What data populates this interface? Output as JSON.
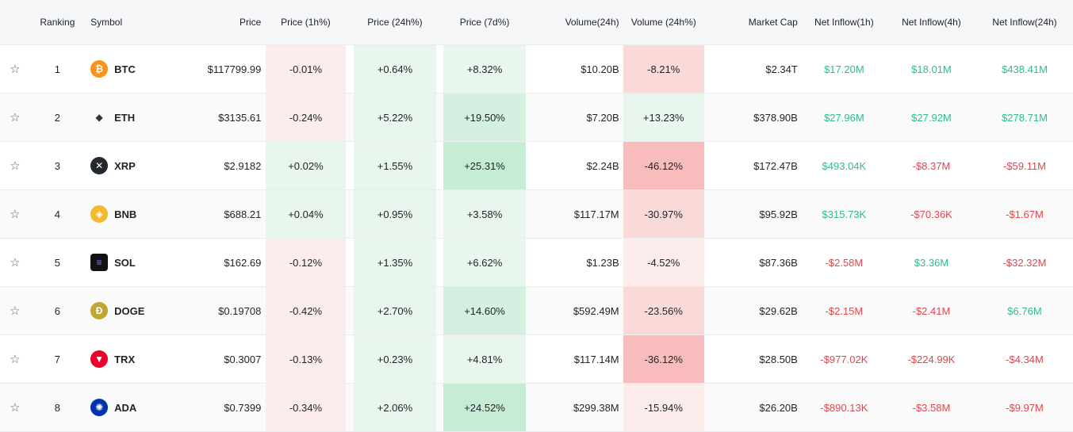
{
  "headers": {
    "ranking": "Ranking",
    "symbol": "Symbol",
    "price": "Price",
    "price_1h": "Price (1h%)",
    "price_24h": "Price (24h%)",
    "price_7d": "Price (7d%)",
    "volume_24h": "Volume(24h)",
    "volume_24h_pct": "Volume (24h%)",
    "market_cap": "Market Cap",
    "inflow_1h": "Net Inflow(1h)",
    "inflow_4h": "Net Inflow(4h)",
    "inflow_24h": "Net Inflow(24h)"
  },
  "colors": {
    "positive_text": "#2ebd85",
    "negative_text": "#e0464e",
    "light_red": "#fceceb",
    "mid_red": "#fad9d9",
    "strong_red": "#f8bcbc",
    "light_green": "#e8f6ee",
    "mid_green": "#d4f0e1",
    "strong_green": "#c6ecd6"
  },
  "rows": [
    {
      "star": "☆",
      "rank": "1",
      "symbol": "BTC",
      "icon": "bitcoin-icon",
      "icon_color": "#f7931a",
      "icon_glyph": "₿",
      "price": "$117799.99",
      "p1h": "-0.01%",
      "p1h_bg": "light_red",
      "p24h": "+0.64%",
      "p24h_bg": "light_green",
      "p7d": "+8.32%",
      "p7d_bg": "light_green",
      "vol": "$10.20B",
      "vol24": "-8.21%",
      "vol24_bg": "mid_red",
      "mcap": "$2.34T",
      "in1": "$17.20M",
      "in1_sign": "pos",
      "in4": "$18.01M",
      "in4_sign": "pos",
      "in24": "$438.41M",
      "in24_sign": "pos"
    },
    {
      "star": "☆",
      "rank": "2",
      "symbol": "ETH",
      "icon": "ethereum-icon",
      "icon_color": "#f0f0f0",
      "icon_glyph": "◆",
      "price": "$3135.61",
      "p1h": "-0.24%",
      "p1h_bg": "light_red",
      "p24h": "+5.22%",
      "p24h_bg": "light_green",
      "p7d": "+19.50%",
      "p7d_bg": "mid_green",
      "vol": "$7.20B",
      "vol24": "+13.23%",
      "vol24_bg": "light_green",
      "mcap": "$378.90B",
      "in1": "$27.96M",
      "in1_sign": "pos",
      "in4": "$27.92M",
      "in4_sign": "pos",
      "in24": "$278.71M",
      "in24_sign": "pos"
    },
    {
      "star": "☆",
      "rank": "3",
      "symbol": "XRP",
      "icon": "xrp-icon",
      "icon_color": "#23292f",
      "icon_glyph": "✕",
      "price": "$2.9182",
      "p1h": "+0.02%",
      "p1h_bg": "light_green",
      "p24h": "+1.55%",
      "p24h_bg": "light_green",
      "p7d": "+25.31%",
      "p7d_bg": "strong_green",
      "vol": "$2.24B",
      "vol24": "-46.12%",
      "vol24_bg": "strong_red",
      "mcap": "$172.47B",
      "in1": "$493.04K",
      "in1_sign": "pos",
      "in4": "-$8.37M",
      "in4_sign": "neg",
      "in24": "-$59.11M",
      "in24_sign": "neg"
    },
    {
      "star": "☆",
      "rank": "4",
      "symbol": "BNB",
      "icon": "bnb-icon",
      "icon_color": "#f3ba2f",
      "icon_glyph": "◈",
      "price": "$688.21",
      "p1h": "+0.04%",
      "p1h_bg": "light_green",
      "p24h": "+0.95%",
      "p24h_bg": "light_green",
      "p7d": "+3.58%",
      "p7d_bg": "light_green",
      "vol": "$117.17M",
      "vol24": "-30.97%",
      "vol24_bg": "mid_red",
      "mcap": "$95.92B",
      "in1": "$315.73K",
      "in1_sign": "pos",
      "in4": "-$70.36K",
      "in4_sign": "neg",
      "in24": "-$1.67M",
      "in24_sign": "neg"
    },
    {
      "star": "☆",
      "rank": "5",
      "symbol": "SOL",
      "icon": "solana-icon",
      "icon_color": "#111111",
      "icon_glyph": "≡",
      "price": "$162.69",
      "p1h": "-0.12%",
      "p1h_bg": "light_red",
      "p24h": "+1.35%",
      "p24h_bg": "light_green",
      "p7d": "+6.62%",
      "p7d_bg": "light_green",
      "vol": "$1.23B",
      "vol24": "-4.52%",
      "vol24_bg": "light_red",
      "mcap": "$87.36B",
      "in1": "-$2.58M",
      "in1_sign": "neg",
      "in4": "$3.36M",
      "in4_sign": "pos",
      "in24": "-$32.32M",
      "in24_sign": "neg"
    },
    {
      "star": "☆",
      "rank": "6",
      "symbol": "DOGE",
      "icon": "dogecoin-icon",
      "icon_color": "#c2a633",
      "icon_glyph": "Ð",
      "price": "$0.19708",
      "p1h": "-0.42%",
      "p1h_bg": "light_red",
      "p24h": "+2.70%",
      "p24h_bg": "light_green",
      "p7d": "+14.60%",
      "p7d_bg": "mid_green",
      "vol": "$592.49M",
      "vol24": "-23.56%",
      "vol24_bg": "mid_red",
      "mcap": "$29.62B",
      "in1": "-$2.15M",
      "in1_sign": "neg",
      "in4": "-$2.41M",
      "in4_sign": "neg",
      "in24": "$6.76M",
      "in24_sign": "pos"
    },
    {
      "star": "☆",
      "rank": "7",
      "symbol": "TRX",
      "icon": "tron-icon",
      "icon_color": "#eb0029",
      "icon_glyph": "▼",
      "price": "$0.3007",
      "p1h": "-0.13%",
      "p1h_bg": "light_red",
      "p24h": "+0.23%",
      "p24h_bg": "light_green",
      "p7d": "+4.81%",
      "p7d_bg": "light_green",
      "vol": "$117.14M",
      "vol24": "-36.12%",
      "vol24_bg": "strong_red",
      "mcap": "$28.50B",
      "in1": "-$977.02K",
      "in1_sign": "neg",
      "in4": "-$224.99K",
      "in4_sign": "neg",
      "in24": "-$4.34M",
      "in24_sign": "neg"
    },
    {
      "star": "☆",
      "rank": "8",
      "symbol": "ADA",
      "icon": "cardano-icon",
      "icon_color": "#0033ad",
      "icon_glyph": "✺",
      "price": "$0.7399",
      "p1h": "-0.34%",
      "p1h_bg": "light_red",
      "p24h": "+2.06%",
      "p24h_bg": "light_green",
      "p7d": "+24.52%",
      "p7d_bg": "strong_green",
      "vol": "$299.38M",
      "vol24": "-15.94%",
      "vol24_bg": "light_red",
      "mcap": "$26.20B",
      "in1": "-$890.13K",
      "in1_sign": "neg",
      "in4": "-$3.58M",
      "in4_sign": "neg",
      "in24": "-$9.97M",
      "in24_sign": "neg"
    }
  ]
}
